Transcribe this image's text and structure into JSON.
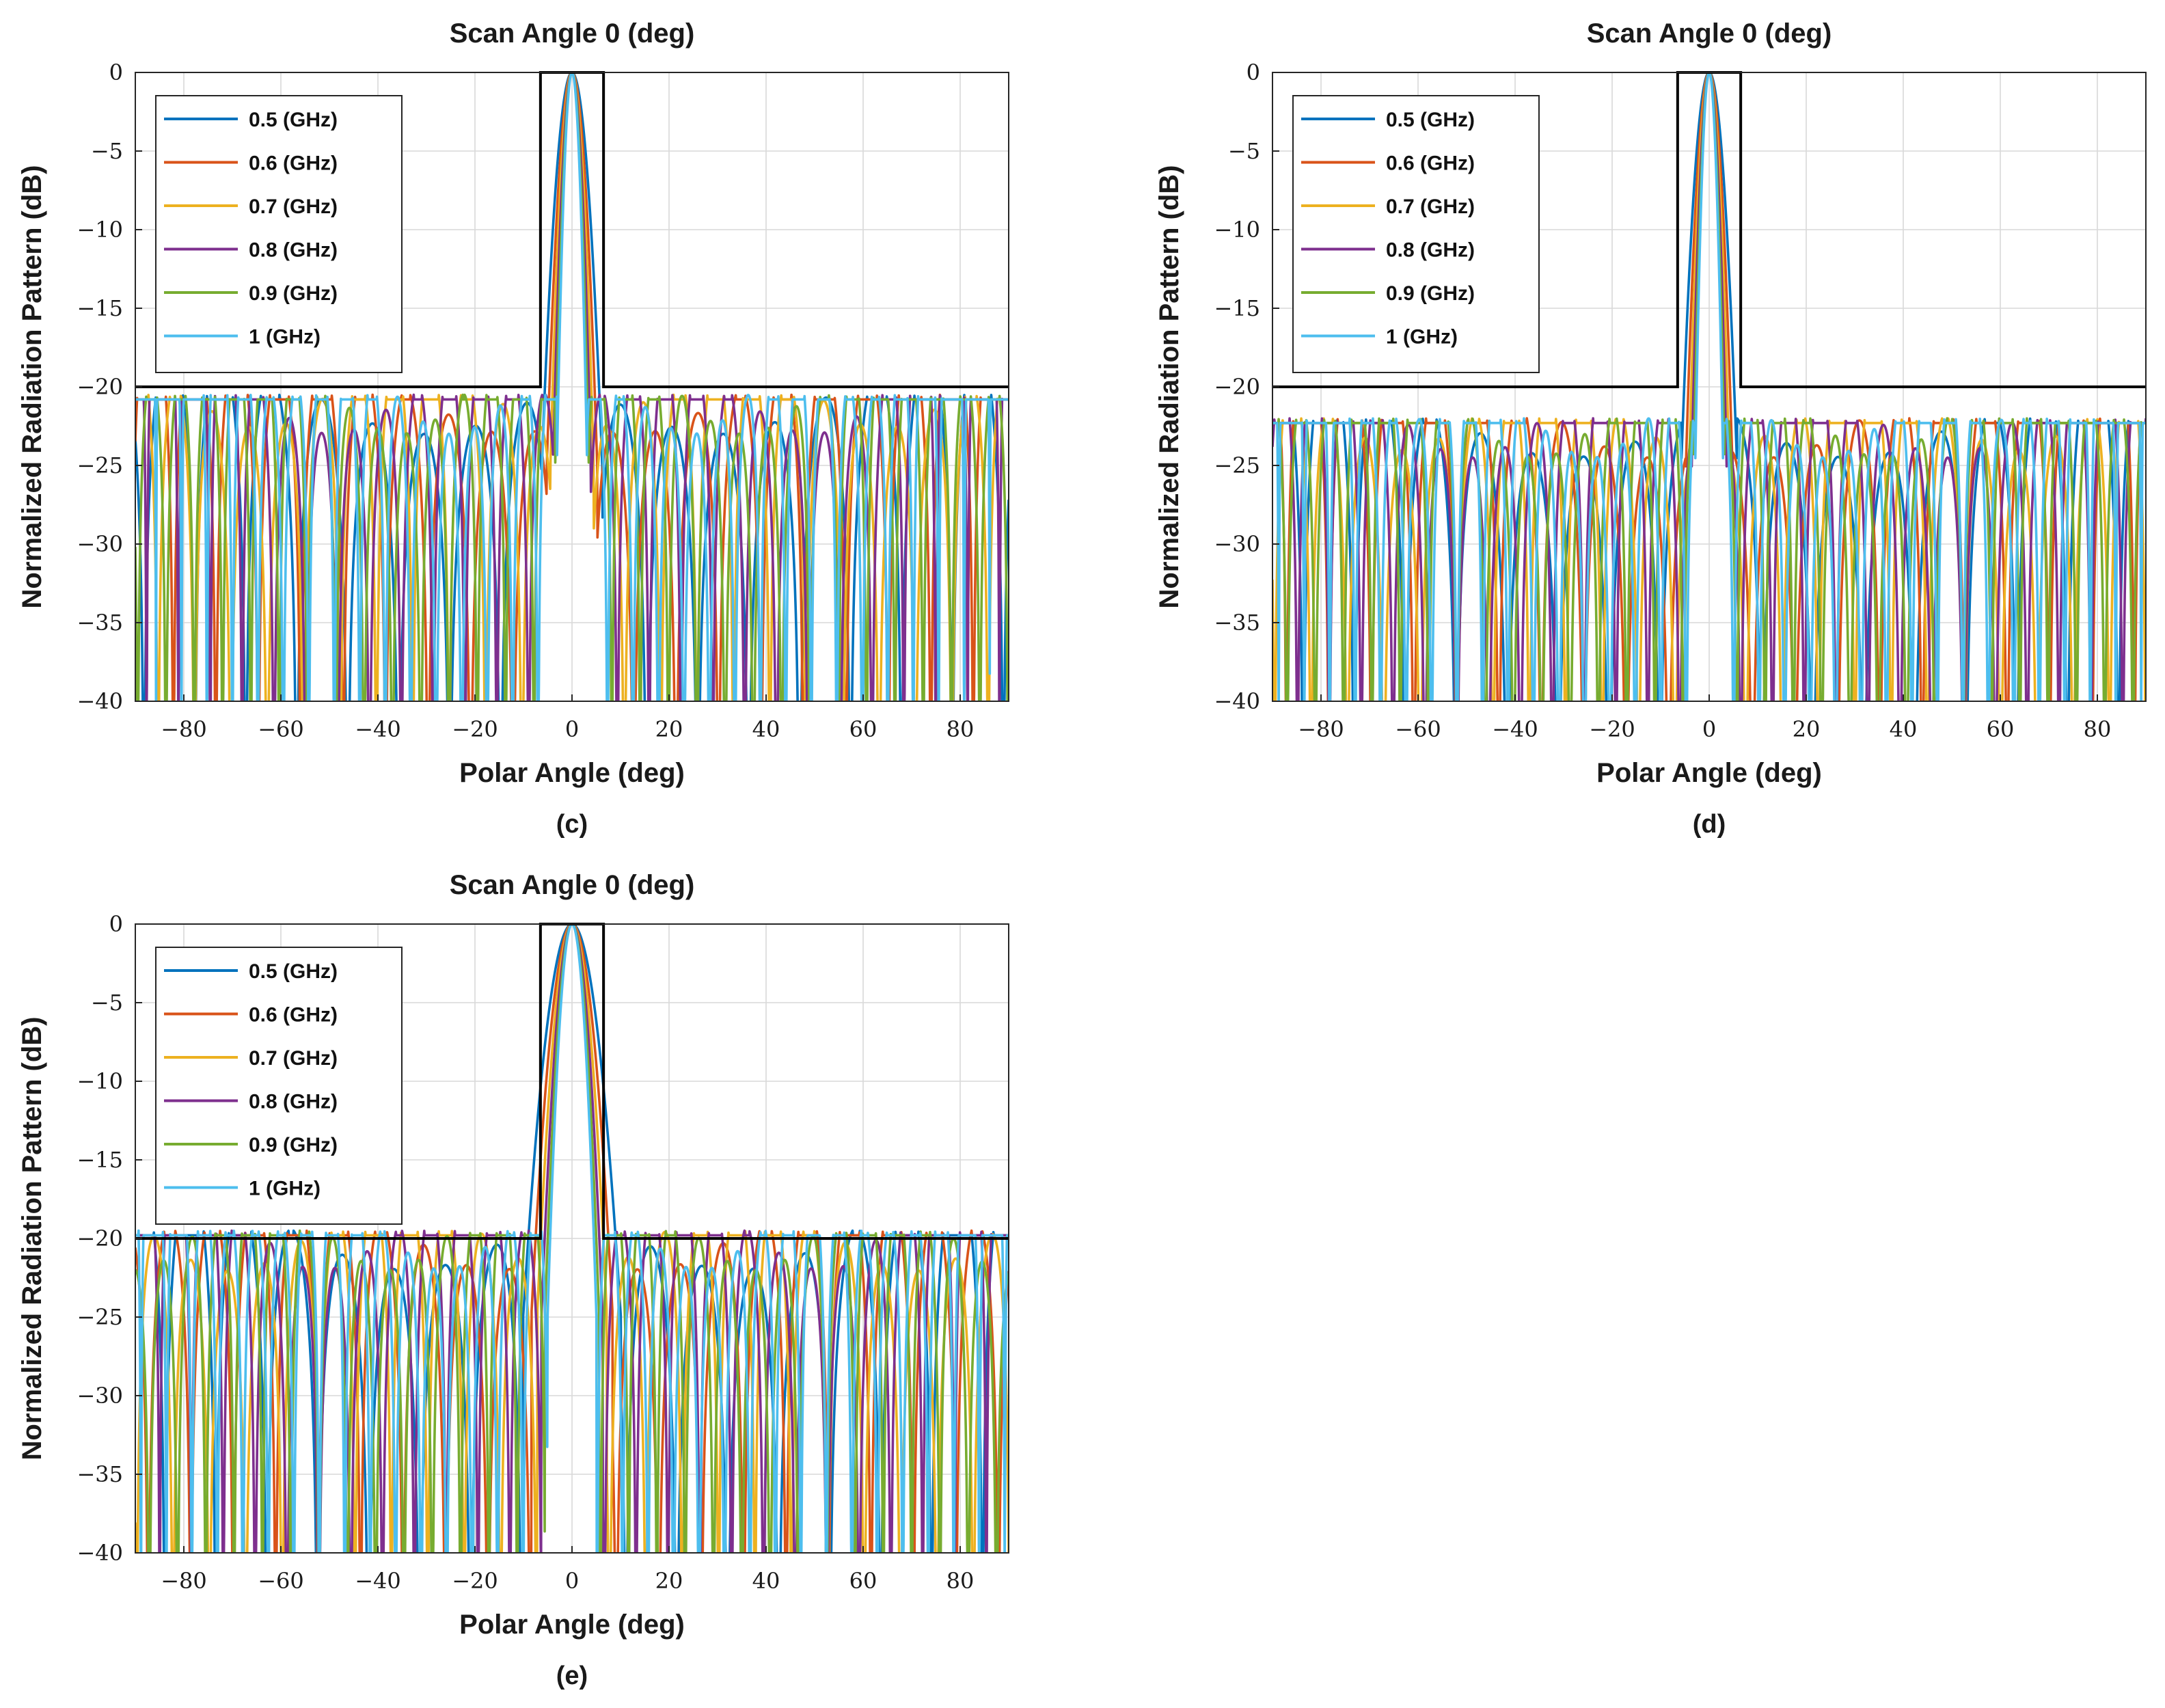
{
  "figure": {
    "panels": [
      {
        "id": "c",
        "caption": "(c)"
      },
      {
        "id": "d",
        "caption": "(d)"
      },
      {
        "id": "e",
        "caption": "(e)"
      }
    ]
  },
  "chart_data": [
    {
      "panel": "(c)",
      "type": "line",
      "title": "Scan Angle 0 (deg)",
      "xlabel": "Polar Angle (deg)",
      "ylabel": "Normalized Radiation Pattern (dB)",
      "xlim": [
        -90,
        90
      ],
      "ylim": [
        -40,
        0
      ],
      "xticks": [
        -80,
        -60,
        -40,
        -20,
        0,
        20,
        40,
        60,
        80
      ],
      "yticks": [
        0,
        -5,
        -10,
        -15,
        -20,
        -25,
        -30,
        -35,
        -40
      ],
      "grid": true,
      "legend_position": "top-left",
      "mask": {
        "x": [
          -90,
          -6.5,
          -6.5,
          6.5,
          6.5,
          90
        ],
        "y": [
          -20,
          -20,
          0,
          0,
          -20,
          -20
        ]
      },
      "series": [
        {
          "name": "0.5 (GHz)",
          "color": "#0072BD",
          "f_ghz": 0.5
        },
        {
          "name": "0.6 (GHz)",
          "color": "#D95319",
          "f_ghz": 0.6
        },
        {
          "name": "0.7 (GHz)",
          "color": "#EDB120",
          "f_ghz": 0.7
        },
        {
          "name": "0.8 (GHz)",
          "color": "#7E2F8E",
          "f_ghz": 0.8
        },
        {
          "name": "0.9 (GHz)",
          "color": "#77AC30",
          "f_ghz": 0.9
        },
        {
          "name": "1 (GHz)",
          "color": "#4DBEEE",
          "f_ghz": 1.0
        }
      ],
      "pattern": {
        "beamwidth_deg_at_0_5GHz": 2.6,
        "sidelobe_level_db": -20.5,
        "floor_db": -40,
        "edge_levels_db": [
          -22,
          -30,
          -22.5,
          -31,
          -25,
          -40
        ]
      }
    },
    {
      "panel": "(d)",
      "type": "line",
      "title": "Scan Angle 0 (deg)",
      "xlabel": "Polar Angle (deg)",
      "ylabel": "Normalized Radiation Pattern (dB)",
      "xlim": [
        -90,
        90
      ],
      "ylim": [
        -40,
        0
      ],
      "xticks": [
        -80,
        -60,
        -40,
        -20,
        0,
        20,
        40,
        60,
        80
      ],
      "yticks": [
        0,
        -5,
        -10,
        -15,
        -20,
        -25,
        -30,
        -35,
        -40
      ],
      "grid": true,
      "legend_position": "top-left",
      "mask": {
        "x": [
          -90,
          -6.5,
          -6.5,
          6.5,
          6.5,
          90
        ],
        "y": [
          -20,
          -20,
          0,
          0,
          -20,
          -20
        ]
      },
      "series": [
        {
          "name": "0.5 (GHz)",
          "color": "#0072BD",
          "f_ghz": 0.5
        },
        {
          "name": "0.6 (GHz)",
          "color": "#D95319",
          "f_ghz": 0.6
        },
        {
          "name": "0.7 (GHz)",
          "color": "#EDB120",
          "f_ghz": 0.7
        },
        {
          "name": "0.8 (GHz)",
          "color": "#7E2F8E",
          "f_ghz": 0.8
        },
        {
          "name": "0.9 (GHz)",
          "color": "#77AC30",
          "f_ghz": 0.9
        },
        {
          "name": "1 (GHz)",
          "color": "#4DBEEE",
          "f_ghz": 1.0
        }
      ],
      "pattern": {
        "beamwidth_deg_at_0_5GHz": 2.4,
        "sidelobe_level_db": -22,
        "floor_db": -40,
        "edge_levels_db": [
          -25,
          -32,
          -25,
          -23.5,
          -26.5,
          -35.5
        ]
      }
    },
    {
      "panel": "(e)",
      "type": "line",
      "title": "Scan Angle 0 (deg)",
      "xlabel": "Polar Angle (deg)",
      "ylabel": "Normalized Radiation Pattern (dB)",
      "xlim": [
        -90,
        90
      ],
      "ylim": [
        -40,
        0
      ],
      "xticks": [
        -80,
        -60,
        -40,
        -20,
        0,
        20,
        40,
        60,
        80
      ],
      "yticks": [
        0,
        -5,
        -10,
        -15,
        -20,
        -25,
        -30,
        -35,
        -40
      ],
      "grid": true,
      "legend_position": "top-left",
      "mask": {
        "x": [
          -90,
          -6.5,
          -6.5,
          6.5,
          6.5,
          90
        ],
        "y": [
          -20,
          -20,
          0,
          0,
          -20,
          -20
        ]
      },
      "series": [
        {
          "name": "0.5 (GHz)",
          "color": "#0072BD",
          "f_ghz": 0.5
        },
        {
          "name": "0.6 (GHz)",
          "color": "#D95319",
          "f_ghz": 0.6
        },
        {
          "name": "0.7 (GHz)",
          "color": "#EDB120",
          "f_ghz": 0.7
        },
        {
          "name": "0.8 (GHz)",
          "color": "#7E2F8E",
          "f_ghz": 0.8
        },
        {
          "name": "0.9 (GHz)",
          "color": "#77AC30",
          "f_ghz": 0.9
        },
        {
          "name": "1 (GHz)",
          "color": "#4DBEEE",
          "f_ghz": 1.0
        }
      ],
      "pattern": {
        "beamwidth_deg_at_0_5GHz": 4.2,
        "sidelobe_level_db": -19.5,
        "floor_db": -40,
        "edge_levels_db": [
          -21.4,
          -22.5,
          -19.3,
          -24.5,
          -19.5,
          -29.3
        ]
      }
    }
  ]
}
